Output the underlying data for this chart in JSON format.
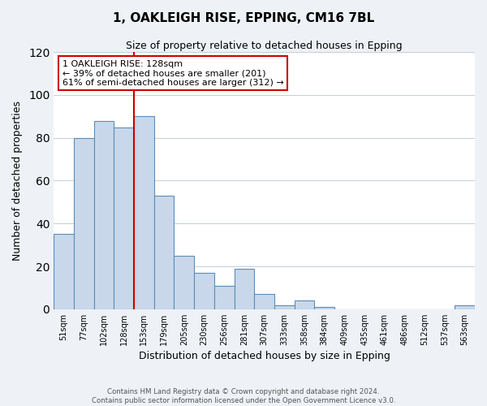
{
  "title": "1, OAKLEIGH RISE, EPPING, CM16 7BL",
  "subtitle": "Size of property relative to detached houses in Epping",
  "xlabel": "Distribution of detached houses by size in Epping",
  "ylabel": "Number of detached properties",
  "bin_labels": [
    "51sqm",
    "77sqm",
    "102sqm",
    "128sqm",
    "153sqm",
    "179sqm",
    "205sqm",
    "230sqm",
    "256sqm",
    "281sqm",
    "307sqm",
    "333sqm",
    "358sqm",
    "384sqm",
    "409sqm",
    "435sqm",
    "461sqm",
    "486sqm",
    "512sqm",
    "537sqm",
    "563sqm"
  ],
  "bar_heights": [
    35,
    80,
    88,
    85,
    90,
    53,
    25,
    17,
    11,
    19,
    7,
    2,
    4,
    1,
    0,
    0,
    0,
    0,
    0,
    0,
    2
  ],
  "bar_color": "#c8d8ea",
  "bar_edge_color": "#5b8db8",
  "vline_index": 3,
  "vline_color": "#cc0000",
  "annotation_text": "1 OAKLEIGH RISE: 128sqm\n← 39% of detached houses are smaller (201)\n61% of semi-detached houses are larger (312) →",
  "annotation_box_color": "white",
  "annotation_box_edge": "#cc0000",
  "footer_text": "Contains HM Land Registry data © Crown copyright and database right 2024.\nContains public sector information licensed under the Open Government Licence v3.0.",
  "ylim": [
    0,
    120
  ],
  "background_color": "#eef2f7",
  "plot_bg_color": "white",
  "grid_color": "#c5cdd8"
}
